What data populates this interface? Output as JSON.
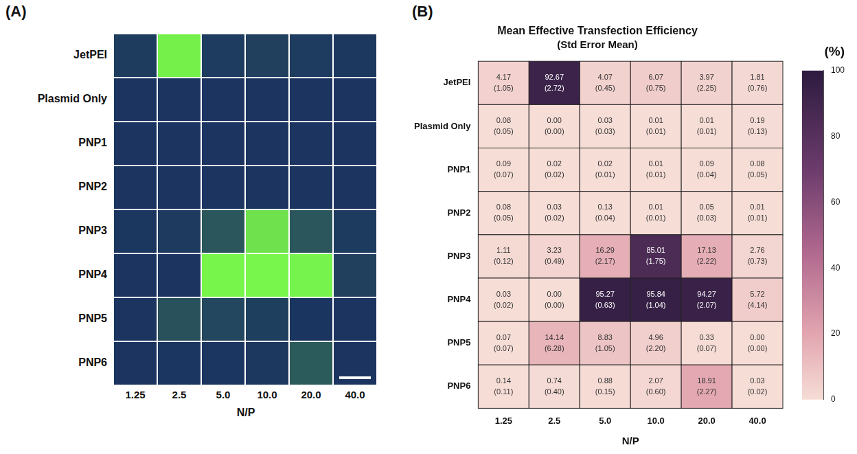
{
  "panel_a": {
    "label": "(A)",
    "type": "image_grid",
    "rows": [
      "JetPEI",
      "Plasmid Only",
      "PNP1",
      "PNP2",
      "PNP3",
      "PNP4",
      "PNP5",
      "PNP6"
    ],
    "columns": [
      "1.25",
      "2.5",
      "5.0",
      "10.0",
      "20.0",
      "40.0"
    ],
    "xlabel": "N/P"
  },
  "chart_data": {
    "panel_label": "(B)",
    "type": "heatmap",
    "title": "Mean Effective Transfection Efficiency",
    "subtitle": "(Std Error Mean)",
    "xlabel": "N/P",
    "categories": [
      "1.25",
      "2.5",
      "5.0",
      "10.0",
      "20.0",
      "40.0"
    ],
    "rows": [
      "JetPEI",
      "Plasmid Only",
      "PNP1",
      "PNP2",
      "PNP3",
      "PNP4",
      "PNP5",
      "PNP6"
    ],
    "values": [
      [
        4.17,
        92.67,
        4.07,
        6.07,
        3.97,
        1.81
      ],
      [
        0.08,
        0,
        0.03,
        0.01,
        0.01,
        0.19
      ],
      [
        0.09,
        0.02,
        0.02,
        0.01,
        0.09,
        0.08
      ],
      [
        0.08,
        0.03,
        0.13,
        0.01,
        0.05,
        0.01
      ],
      [
        1.11,
        3.23,
        16.29,
        85.01,
        17.13,
        2.76
      ],
      [
        0.03,
        0,
        95.27,
        95.84,
        94.27,
        5.72
      ],
      [
        0.07,
        14.14,
        8.83,
        4.96,
        0.33,
        0
      ],
      [
        0.14,
        0.74,
        0.88,
        2.07,
        18.91,
        0.03
      ]
    ],
    "value_labels": [
      [
        "4.17",
        "92.67",
        "4.07",
        "6.07",
        "3.97",
        "1.81"
      ],
      [
        "0.08",
        "0.00",
        "0.03",
        "0.01",
        "0.01",
        "0.19"
      ],
      [
        "0.09",
        "0.02",
        "0.02",
        "0.01",
        "0.09",
        "0.08"
      ],
      [
        "0.08",
        "0.03",
        "0.13",
        "0.01",
        "0.05",
        "0.01"
      ],
      [
        "1.11",
        "3.23",
        "16.29",
        "85.01",
        "17.13",
        "2.76"
      ],
      [
        "0.03",
        "0.00",
        "95.27",
        "95.84",
        "94.27",
        "5.72"
      ],
      [
        "0.07",
        "14.14",
        "8.83",
        "4.96",
        "0.33",
        "0.00"
      ],
      [
        "0.14",
        "0.74",
        "0.88",
        "2.07",
        "18.91",
        "0.03"
      ]
    ],
    "sem_labels": [
      [
        "(1.05)",
        "(2.72)",
        "(0.45)",
        "(0.75)",
        "(2.25)",
        "(0.76)"
      ],
      [
        "(0.05)",
        "(0.00)",
        "(0.03)",
        "(0.01)",
        "(0.01)",
        "(0.13)"
      ],
      [
        "(0.07)",
        "(0.02)",
        "(0.01)",
        "(0.01)",
        "(0.04)",
        "(0.05)"
      ],
      [
        "(0.05)",
        "(0.02)",
        "(0.04)",
        "(0.01)",
        "(0.03)",
        "(0.01)"
      ],
      [
        "(0.12)",
        "(0.49)",
        "(2.17)",
        "(1.75)",
        "(2.22)",
        "(0.73)"
      ],
      [
        "(0.02)",
        "(0.00)",
        "(0.63)",
        "(1.04)",
        "(2.07)",
        "(4.14)"
      ],
      [
        "(0.07)",
        "(6.28)",
        "(1.05)",
        "(2.20)",
        "(0.07)",
        "(0.00)"
      ],
      [
        "(0.11)",
        "(0.40)",
        "(0.15)",
        "(0.60)",
        "(2.27)",
        "(0.02)"
      ]
    ],
    "data_labels": true,
    "grid": false,
    "colorbar": {
      "label": "(%)",
      "lim": [
        0,
        100
      ],
      "ticks": [
        0,
        20,
        40,
        60,
        80,
        100
      ]
    }
  }
}
